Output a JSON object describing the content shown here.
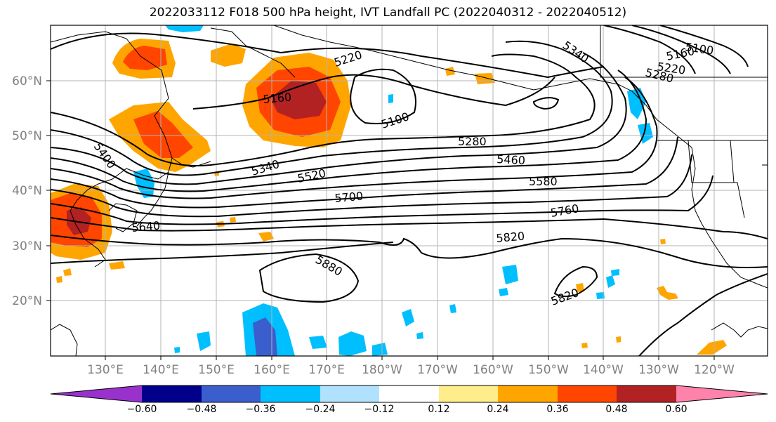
{
  "title": "2022033112 F018 500 hPa height, IVT Landfall PC (2022040312 - 2022040512)",
  "lat_labels": [
    "60°N",
    "50°N",
    "40°N",
    "30°N",
    "20°N"
  ],
  "lon_labels": [
    "130°E",
    "140°E",
    "150°E",
    "160°E",
    "170°E",
    "180°W",
    "170°W",
    "160°W",
    "150°W",
    "140°W",
    "130°W",
    "120°W"
  ],
  "contour_labels": [
    "5220",
    "5160",
    "5100",
    "5400",
    "5340",
    "5520",
    "5280",
    "5460",
    "5580",
    "5700",
    "5640",
    "5760",
    "5820",
    "5880",
    "5820",
    "5340",
    "5160",
    "5100",
    "5220",
    "5280"
  ],
  "colorbar": {
    "tick_labels": [
      "−0.60",
      "−0.48",
      "−0.36",
      "−0.24",
      "−0.12",
      "0.12",
      "0.24",
      "0.36",
      "0.48",
      "0.60"
    ],
    "colors": [
      "#9932cc",
      "#00008b",
      "#3a5fcd",
      "#00bfff",
      "#b0e2ff",
      "#ffffff",
      "#ffec8b",
      "#ffa500",
      "#ff4500",
      "#b22222",
      "#ff82ab"
    ]
  },
  "colors": {
    "positive_low": "#ffa500",
    "positive_mid": "#ff4500",
    "positive_high": "#b22222",
    "negative_low": "#00bfff",
    "negative_mid": "#3a5fcd"
  }
}
